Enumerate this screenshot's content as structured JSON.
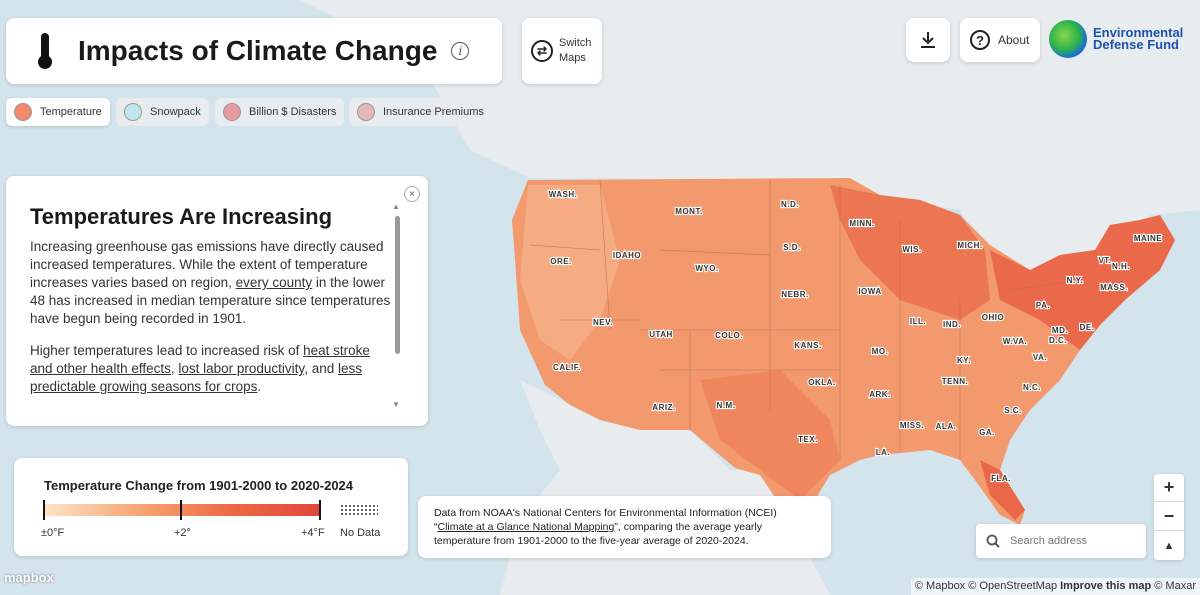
{
  "header": {
    "title": "Impacts of Climate Change",
    "switch_label": "Switch Maps",
    "about_label": "About",
    "logo_text": "Environmental Defense Fund"
  },
  "tabs": [
    {
      "label": "Temperature",
      "color": "#f08a6a",
      "active": true
    },
    {
      "label": "Snowpack",
      "color": "#bfe6ef",
      "active": false
    },
    {
      "label": "Billion $ Disasters",
      "color": "#e69aa0",
      "active": false
    },
    {
      "label": "Insurance Premiums",
      "color": "#e8b8b8",
      "active": false
    }
  ],
  "panel": {
    "heading": "Temperatures Are Increasing",
    "p1_a": "Increasing greenhouse gas emissions have directly caused increased temperatures. While the extent of temperature increases varies based on region, ",
    "p1_link": "every county",
    "p1_b": " in the lower 48 has increased in median temperature since temperatures have begun being recorded in 1901.",
    "p2_a": "Higher temperatures lead to increased risk of ",
    "p2_link1": "heat stroke and other health effects",
    "p2_sep": ", ",
    "p2_link2": "lost labor productivity",
    "p2_b": ", and ",
    "p2_link3": "less predictable growing seasons for crops",
    "p2_c": "."
  },
  "legend": {
    "title": "Temperature Change from 1901-2000 to 2020-2024",
    "min_label": "±0°F",
    "mid_label": "+2°",
    "max_label": "+4°F",
    "nodata_label": "No Data"
  },
  "source": {
    "line1": "Data from NOAA's National Centers for Environmental Information (NCEI)",
    "quote_open": "“",
    "link": "Climate at a Glance National Mapping",
    "rest": "”, comparing the average yearly temperature from 1901-2000 to the five-year average of 2020-2024."
  },
  "search": {
    "placeholder": "Search address"
  },
  "map_labels": [
    "WASH.",
    "ORE.",
    "CALIF.",
    "IDAHO",
    "NEV.",
    "MONT.",
    "WYO.",
    "UTAH",
    "ARIZ.",
    "COLO.",
    "N.M.",
    "N.D.",
    "S.D.",
    "NEBR.",
    "KANS.",
    "OKLA.",
    "TEX.",
    "MINN.",
    "IOWA",
    "MO.",
    "ARK.",
    "LA.",
    "WIS.",
    "ILL.",
    "MICH.",
    "IND.",
    "OHIO",
    "KY.",
    "TENN.",
    "MISS.",
    "ALA.",
    "GA.",
    "FLA.",
    "S.C.",
    "N.C.",
    "VA.",
    "W.VA.",
    "PA.",
    "N.Y.",
    "MD.",
    "DE.",
    "VT.",
    "N.H.",
    "MAINE",
    "MASS.",
    "D.C."
  ],
  "attribution": {
    "mapbox": "mapbox",
    "text": "© Mapbox © OpenStreetMap",
    "improve": "Improve this map",
    "maxar": "© Maxar"
  }
}
